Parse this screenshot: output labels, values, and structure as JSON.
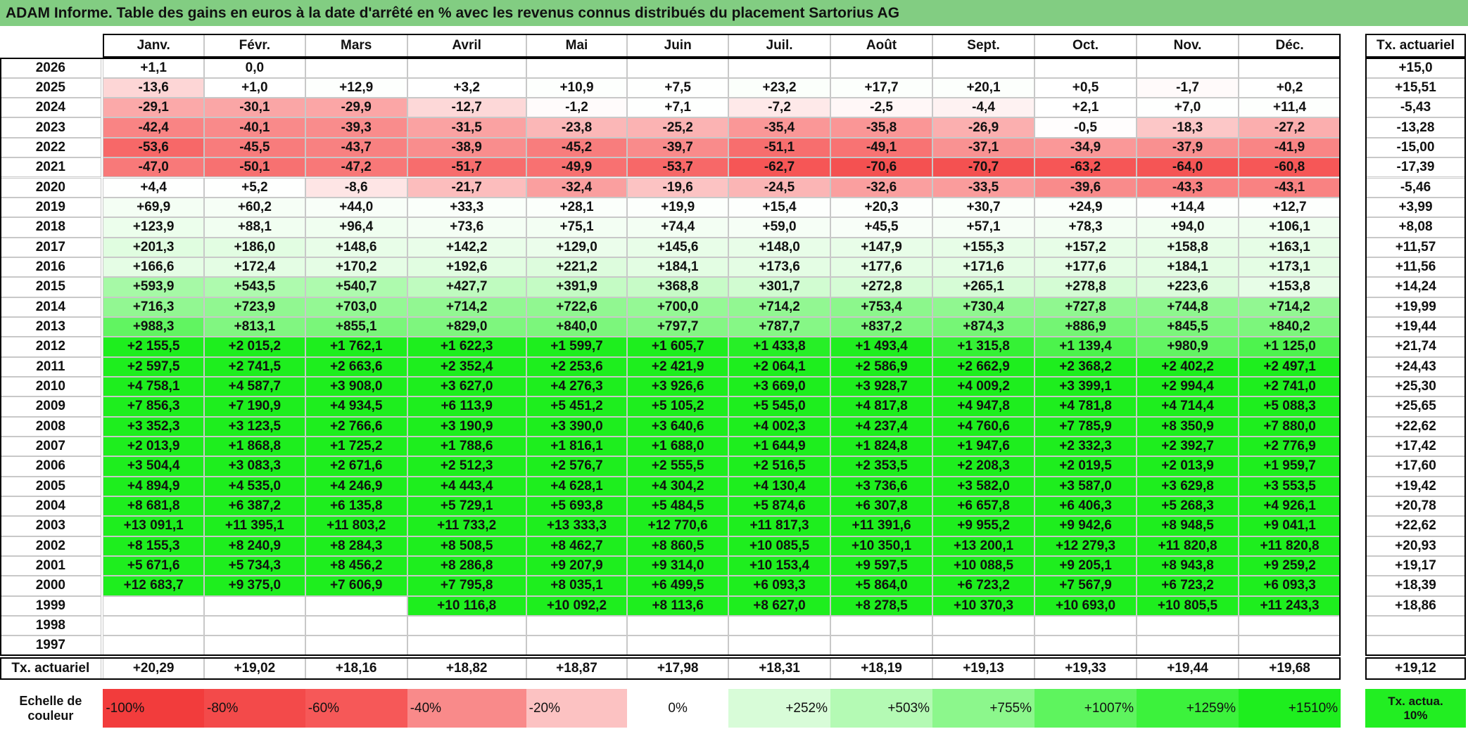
{
  "title": "ADAM Informe. Table des gains en euros à la date d'arrêté en % avec les revenus connus distribués du placement Sartorius AG",
  "title_color": "#82cd82",
  "header": {
    "months": [
      "Janv.",
      "Févr.",
      "Mars",
      "Avril",
      "Mai",
      "Juin",
      "Juil.",
      "Août",
      "Sept.",
      "Oct.",
      "Nov.",
      "Déc."
    ],
    "rate": "Tx. actuariel"
  },
  "rows": [
    {
      "year": "2026",
      "values": [
        "+1,1",
        "0,0",
        null,
        null,
        null,
        null,
        null,
        null,
        null,
        null,
        null,
        null
      ],
      "rate": "+15,0"
    },
    {
      "year": "2025",
      "values": [
        "-13,6",
        "+1,0",
        "+12,9",
        "+3,2",
        "+10,9",
        "+7,5",
        "+23,2",
        "+17,7",
        "+20,1",
        "+0,5",
        "-1,7",
        "+0,2"
      ],
      "rate": "+15,51"
    },
    {
      "year": "2024",
      "values": [
        "-29,1",
        "-30,1",
        "-29,9",
        "-12,7",
        "-1,2",
        "+7,1",
        "-7,2",
        "-2,5",
        "-4,4",
        "+2,1",
        "+7,0",
        "+11,4"
      ],
      "rate": "-5,43"
    },
    {
      "year": "2023",
      "values": [
        "-42,4",
        "-40,1",
        "-39,3",
        "-31,5",
        "-23,8",
        "-25,2",
        "-35,4",
        "-35,8",
        "-26,9",
        "-0,5",
        "-18,3",
        "-27,2"
      ],
      "rate": "-13,28"
    },
    {
      "year": "2022",
      "values": [
        "-53,6",
        "-45,5",
        "-43,7",
        "-38,9",
        "-45,2",
        "-39,7",
        "-51,1",
        "-49,1",
        "-37,1",
        "-34,9",
        "-37,9",
        "-41,9"
      ],
      "rate": "-15,00"
    },
    {
      "year": "2021",
      "values": [
        "-47,0",
        "-50,1",
        "-47,2",
        "-51,7",
        "-49,9",
        "-53,7",
        "-62,7",
        "-70,6",
        "-70,7",
        "-63,2",
        "-64,0",
        "-60,8"
      ],
      "rate": "-17,39"
    },
    {
      "year": "2020",
      "values": [
        "+4,4",
        "+5,2",
        "-8,6",
        "-21,7",
        "-32,4",
        "-19,6",
        "-24,5",
        "-32,6",
        "-33,5",
        "-39,6",
        "-43,3",
        "-43,1"
      ],
      "rate": "-5,46"
    },
    {
      "year": "2019",
      "values": [
        "+69,9",
        "+60,2",
        "+44,0",
        "+33,3",
        "+28,1",
        "+19,9",
        "+15,4",
        "+20,3",
        "+30,7",
        "+24,9",
        "+14,4",
        "+12,7"
      ],
      "rate": "+3,99"
    },
    {
      "year": "2018",
      "values": [
        "+123,9",
        "+88,1",
        "+96,4",
        "+73,6",
        "+75,1",
        "+74,4",
        "+59,0",
        "+45,5",
        "+57,1",
        "+78,3",
        "+94,0",
        "+106,1"
      ],
      "rate": "+8,08"
    },
    {
      "year": "2017",
      "values": [
        "+201,3",
        "+186,0",
        "+148,6",
        "+142,2",
        "+129,0",
        "+145,6",
        "+148,0",
        "+147,9",
        "+155,3",
        "+157,2",
        "+158,8",
        "+163,1"
      ],
      "rate": "+11,57"
    },
    {
      "year": "2016",
      "values": [
        "+166,6",
        "+172,4",
        "+170,2",
        "+192,6",
        "+221,2",
        "+184,1",
        "+173,6",
        "+177,6",
        "+171,6",
        "+177,6",
        "+184,1",
        "+173,1"
      ],
      "rate": "+11,56"
    },
    {
      "year": "2015",
      "values": [
        "+593,9",
        "+543,5",
        "+540,7",
        "+427,7",
        "+391,9",
        "+368,8",
        "+301,7",
        "+272,8",
        "+265,1",
        "+278,8",
        "+223,6",
        "+153,8"
      ],
      "rate": "+14,24"
    },
    {
      "year": "2014",
      "values": [
        "+716,3",
        "+723,9",
        "+703,0",
        "+714,2",
        "+722,6",
        "+700,0",
        "+714,2",
        "+753,4",
        "+730,4",
        "+727,8",
        "+744,8",
        "+714,2"
      ],
      "rate": "+19,99"
    },
    {
      "year": "2013",
      "values": [
        "+988,3",
        "+813,1",
        "+855,1",
        "+829,0",
        "+840,0",
        "+797,7",
        "+787,7",
        "+837,2",
        "+874,3",
        "+886,9",
        "+845,5",
        "+840,2"
      ],
      "rate": "+19,44"
    },
    {
      "year": "2012",
      "values": [
        "+2 155,5",
        "+2 015,2",
        "+1 762,1",
        "+1 622,3",
        "+1 599,7",
        "+1 605,7",
        "+1 433,8",
        "+1 493,4",
        "+1 315,8",
        "+1 139,4",
        "+980,9",
        "+1 125,0"
      ],
      "rate": "+21,74"
    },
    {
      "year": "2011",
      "values": [
        "+2 597,5",
        "+2 741,5",
        "+2 663,6",
        "+2 352,4",
        "+2 253,6",
        "+2 421,9",
        "+2 064,1",
        "+2 586,9",
        "+2 662,9",
        "+2 368,2",
        "+2 402,2",
        "+2 497,1"
      ],
      "rate": "+24,43"
    },
    {
      "year": "2010",
      "values": [
        "+4 758,1",
        "+4 587,7",
        "+3 908,0",
        "+3 627,0",
        "+4 276,3",
        "+3 926,6",
        "+3 669,0",
        "+3 928,7",
        "+4 009,2",
        "+3 399,1",
        "+2 994,4",
        "+2 741,0"
      ],
      "rate": "+25,30"
    },
    {
      "year": "2009",
      "values": [
        "+7 856,3",
        "+7 190,9",
        "+4 934,5",
        "+6 113,9",
        "+5 451,2",
        "+5 105,2",
        "+5 545,0",
        "+4 817,8",
        "+4 947,8",
        "+4 781,8",
        "+4 714,4",
        "+5 088,3"
      ],
      "rate": "+25,65"
    },
    {
      "year": "2008",
      "values": [
        "+3 352,3",
        "+3 123,5",
        "+2 766,6",
        "+3 190,9",
        "+3 390,0",
        "+3 640,6",
        "+4 002,3",
        "+4 237,4",
        "+4 760,6",
        "+7 785,9",
        "+8 350,9",
        "+7 880,0"
      ],
      "rate": "+22,62"
    },
    {
      "year": "2007",
      "values": [
        "+2 013,9",
        "+1 868,8",
        "+1 725,2",
        "+1 788,6",
        "+1 816,1",
        "+1 688,0",
        "+1 644,9",
        "+1 824,8",
        "+1 947,6",
        "+2 332,3",
        "+2 392,7",
        "+2 776,9"
      ],
      "rate": "+17,42"
    },
    {
      "year": "2006",
      "values": [
        "+3 504,4",
        "+3 083,3",
        "+2 671,6",
        "+2 512,3",
        "+2 576,7",
        "+2 555,5",
        "+2 516,5",
        "+2 353,5",
        "+2 208,3",
        "+2 019,5",
        "+2 013,9",
        "+1 959,7"
      ],
      "rate": "+17,60"
    },
    {
      "year": "2005",
      "values": [
        "+4 894,9",
        "+4 535,0",
        "+4 246,9",
        "+4 443,4",
        "+4 628,1",
        "+4 304,2",
        "+4 130,4",
        "+3 736,6",
        "+3 582,0",
        "+3 587,0",
        "+3 629,8",
        "+3 553,5"
      ],
      "rate": "+19,42"
    },
    {
      "year": "2004",
      "values": [
        "+8 681,8",
        "+6 387,2",
        "+6 135,8",
        "+5 729,1",
        "+5 693,8",
        "+5 484,5",
        "+5 874,6",
        "+6 307,8",
        "+6 657,8",
        "+6 406,3",
        "+5 268,3",
        "+4 926,1"
      ],
      "rate": "+20,78"
    },
    {
      "year": "2003",
      "values": [
        "+13 091,1",
        "+11 395,1",
        "+11 803,2",
        "+11 733,2",
        "+13 333,3",
        "+12 770,6",
        "+11 817,3",
        "+11 391,6",
        "+9 955,2",
        "+9 942,6",
        "+8 948,5",
        "+9 041,1"
      ],
      "rate": "+22,62"
    },
    {
      "year": "2002",
      "values": [
        "+8 155,3",
        "+8 240,9",
        "+8 284,3",
        "+8 508,5",
        "+8 462,7",
        "+8 860,5",
        "+10 085,5",
        "+10 350,1",
        "+13 200,1",
        "+12 279,3",
        "+11 820,8",
        "+11 820,8"
      ],
      "rate": "+20,93"
    },
    {
      "year": "2001",
      "values": [
        "+5 671,6",
        "+5 734,3",
        "+8 456,2",
        "+8 286,8",
        "+9 207,9",
        "+9 314,0",
        "+10 153,4",
        "+9 597,5",
        "+10 088,5",
        "+9 205,1",
        "+8 943,8",
        "+9 259,2"
      ],
      "rate": "+19,17"
    },
    {
      "year": "2000",
      "values": [
        "+12 683,7",
        "+9 375,0",
        "+7 606,9",
        "+7 795,8",
        "+8 035,1",
        "+6 499,5",
        "+6 093,3",
        "+5 864,0",
        "+6 723,2",
        "+7 567,9",
        "+6 723,2",
        "+6 093,3"
      ],
      "rate": "+18,39"
    },
    {
      "year": "1999",
      "values": [
        null,
        null,
        null,
        "+10 116,8",
        "+10 092,2",
        "+8 113,6",
        "+8 627,0",
        "+8 278,5",
        "+10 370,3",
        "+10 693,0",
        "+10 805,5",
        "+11 243,3"
      ],
      "rate": "+18,86"
    },
    {
      "year": "1998",
      "values": [
        null,
        null,
        null,
        null,
        null,
        null,
        null,
        null,
        null,
        null,
        null,
        null
      ],
      "rate": null
    },
    {
      "year": "1997",
      "values": [
        null,
        null,
        null,
        null,
        null,
        null,
        null,
        null,
        null,
        null,
        null,
        null
      ],
      "rate": null
    }
  ],
  "footer": {
    "label": "Tx. actuariel",
    "values": [
      "+20,29",
      "+19,02",
      "+18,16",
      "+18,82",
      "+18,87",
      "+17,98",
      "+18,31",
      "+18,19",
      "+19,13",
      "+19,33",
      "+19,44",
      "+19,68"
    ],
    "rate": "+19,12"
  },
  "legend": {
    "label": "Echelle de couleur",
    "steps": [
      "-100%",
      "-80%",
      "-60%",
      "-40%",
      "-20%",
      "0%",
      "+252%",
      "+503%",
      "+755%",
      "+1007%",
      "+1259%",
      "+1510%"
    ],
    "colors": [
      "#f23c3c",
      "#f34a4a",
      "#f65858",
      "#f98a8a",
      "#fcc2c2",
      "#ffffff",
      "#d8fcd8",
      "#b4fab4",
      "#8cf78c",
      "#5ef45e",
      "#3cf23c",
      "#1eee1e"
    ],
    "rate_label": "Tx. actua. 10%",
    "rate_color": "#22ee22"
  }
}
